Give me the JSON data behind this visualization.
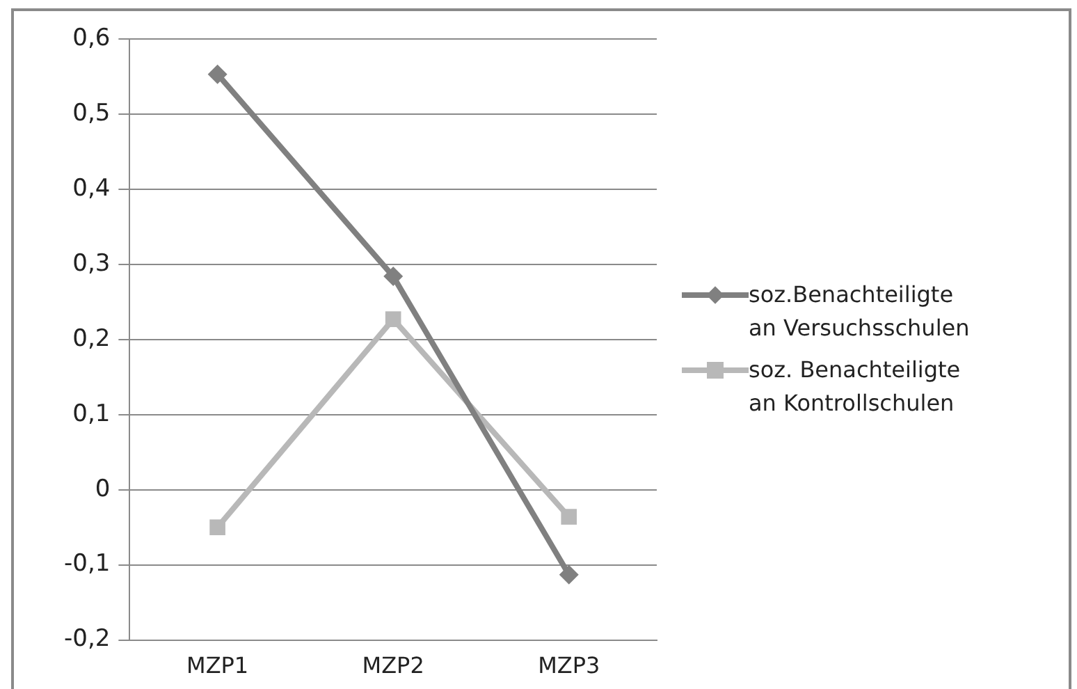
{
  "chart_data": {
    "type": "line",
    "categories": [
      "MZP1",
      "MZP2",
      "MZP3"
    ],
    "series": [
      {
        "name": "soz.Benachteiligte an Versuchsschulen",
        "color": "#808080",
        "marker": "diamond",
        "values": [
          0.553,
          0.284,
          -0.113
        ]
      },
      {
        "name": "soz. Benachteiligte an Kontrollschulen",
        "color": "#b8b8b8",
        "marker": "square",
        "values": [
          -0.05,
          0.227,
          -0.036
        ]
      }
    ],
    "ylim": [
      -0.2,
      0.6
    ],
    "yticks": [
      {
        "value": -0.2,
        "label": "-0,2"
      },
      {
        "value": -0.1,
        "label": "-0,1"
      },
      {
        "value": 0,
        "label": "0"
      },
      {
        "value": 0.1,
        "label": "0,1"
      },
      {
        "value": 0.2,
        "label": "0,2"
      },
      {
        "value": 0.3,
        "label": "0,3"
      },
      {
        "value": 0.4,
        "label": "0,4"
      },
      {
        "value": 0.5,
        "label": "0,5"
      },
      {
        "value": 0.6,
        "label": "0,6"
      }
    ],
    "grid": "y",
    "legend": "right",
    "line_style": "solid"
  }
}
